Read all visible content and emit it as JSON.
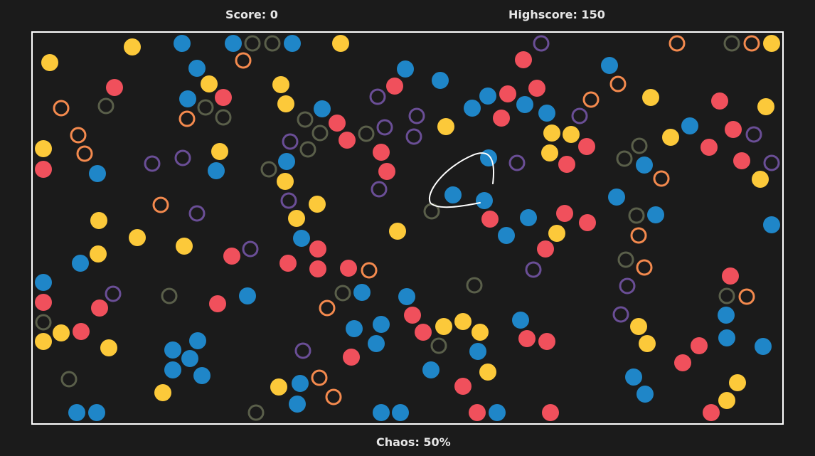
{
  "hud": {
    "score_label": "Score: 0",
    "highscore_label": "Highscore: 150",
    "chaos_label": "Chaos: 50%"
  },
  "game": {
    "score": 0,
    "highscore": 150,
    "chaos_percent": 50
  },
  "colors": {
    "background": "#1b1b1b",
    "frame": "#ffffff",
    "blue": "#1f86c8",
    "red": "#f0505c",
    "yellow": "#fcc93a",
    "orange_ring": "#f48a4e",
    "purple_ring": "#6a4e96",
    "olive_ring": "#5a5f4a",
    "lasso": "#ffffff"
  }
}
